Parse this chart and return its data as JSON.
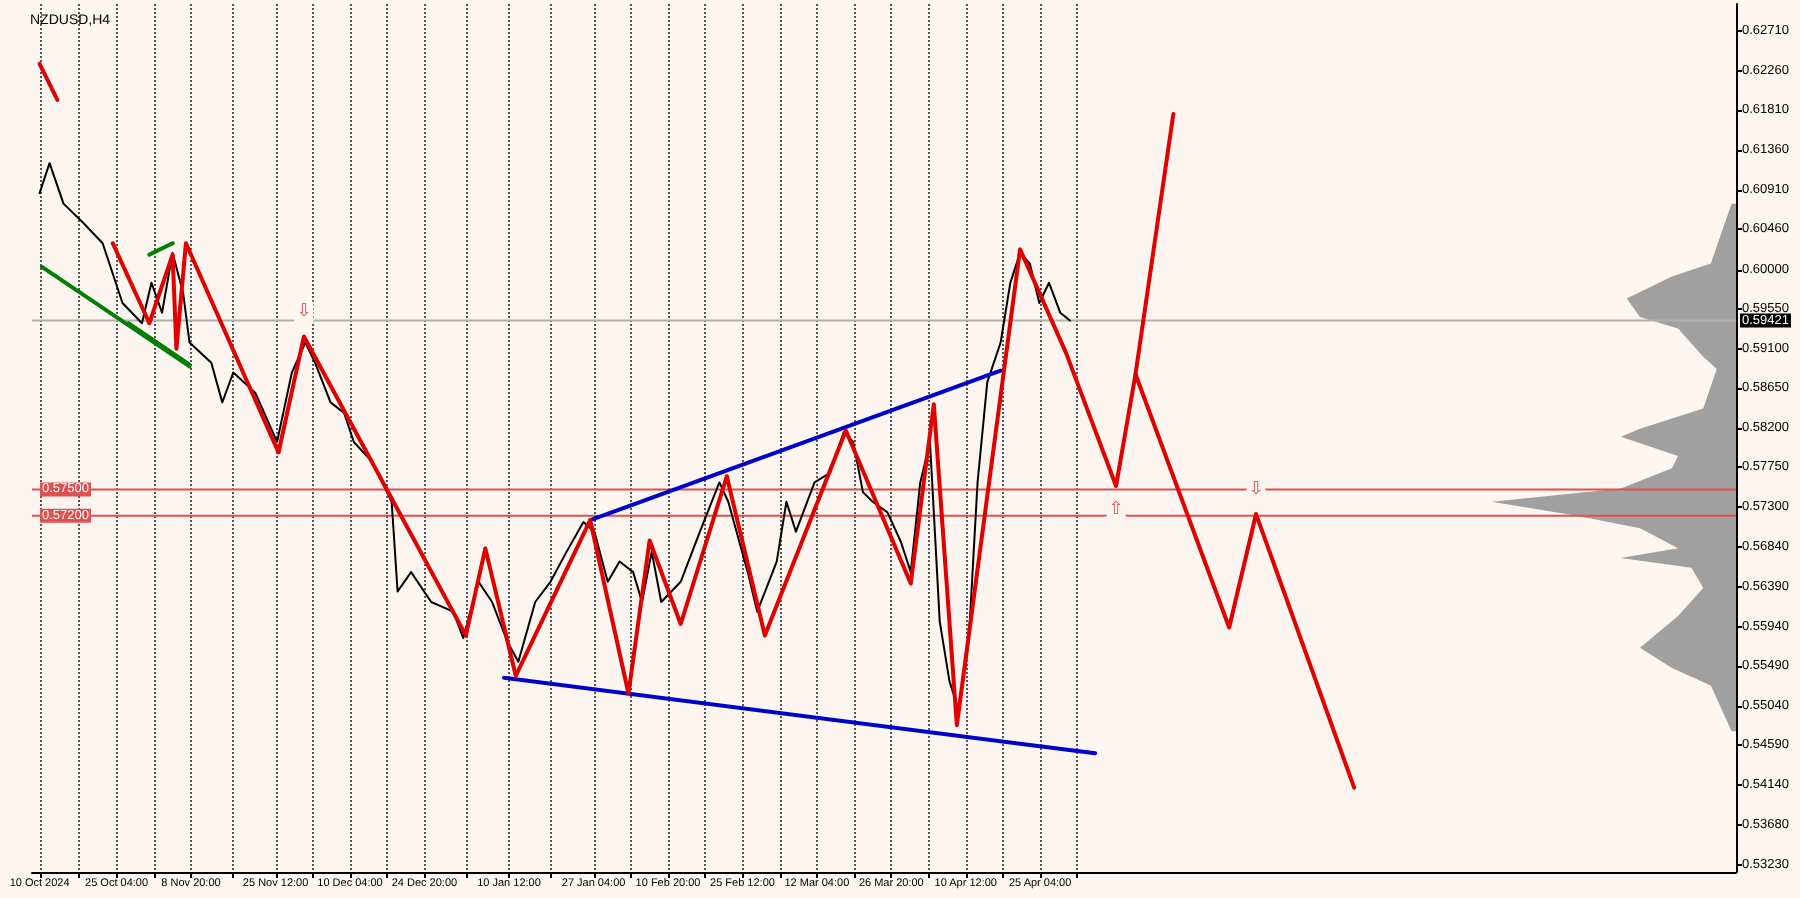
{
  "chart_data": {
    "type": "line",
    "title": "NZDUSD,H4",
    "xlim": [
      "2024-10-08T12:00",
      "2025-09-09T07:00"
    ],
    "xticks": [
      {
        "value": "2024-10-10T00:00",
        "label": "10 Oct 2024"
      },
      {
        "value": "2024-10-17T14:00",
        "label": null
      },
      {
        "value": "2024-10-25T04:00",
        "label": "25 Oct 04:00"
      },
      {
        "value": "2024-11-01T12:00",
        "label": null
      },
      {
        "value": "2024-11-08T20:00",
        "label": "8 Nov 20:00"
      },
      {
        "value": "2024-11-17T04:00",
        "label": null
      },
      {
        "value": "2024-11-25T12:00",
        "label": "25 Nov 12:00"
      },
      {
        "value": "2024-12-02T20:00",
        "label": null
      },
      {
        "value": "2024-12-10T04:00",
        "label": "10 Dec 04:00"
      },
      {
        "value": "2024-12-17T12:00",
        "label": null
      },
      {
        "value": "2024-12-24T20:00",
        "label": "24 Dec 20:00"
      },
      {
        "value": "2025-01-02T04:00",
        "label": null
      },
      {
        "value": "2025-01-10T12:00",
        "label": "10 Jan 12:00"
      },
      {
        "value": "2025-01-18T20:00",
        "label": null
      },
      {
        "value": "2025-01-27T04:00",
        "label": "27 Jan 04:00"
      },
      {
        "value": "2025-02-03T12:00",
        "label": null
      },
      {
        "value": "2025-02-10T20:00",
        "label": "10 Feb 20:00"
      },
      {
        "value": "2025-02-18T04:00",
        "label": null
      },
      {
        "value": "2025-02-25T12:00",
        "label": "25 Feb 12:00"
      },
      {
        "value": "2025-03-04T20:00",
        "label": null
      },
      {
        "value": "2025-03-12T04:00",
        "label": "12 Mar 04:00"
      },
      {
        "value": "2025-03-19T12:00",
        "label": null
      },
      {
        "value": "2025-03-26T20:00",
        "label": "26 Mar 20:00"
      },
      {
        "value": "2025-04-03T04:00",
        "label": null
      },
      {
        "value": "2025-04-10T12:00",
        "label": "10 Apr 12:00"
      },
      {
        "value": "2025-04-17T20:00",
        "label": null
      },
      {
        "value": "2025-04-25T04:00",
        "label": "25 Apr 04:00"
      },
      {
        "value": "2025-05-02T12:00",
        "label": null
      }
    ],
    "ylim": [
      0.5315,
      0.6302
    ],
    "yticks": [
      {
        "value": 0.6271,
        "label": "0.62710"
      },
      {
        "value": 0.6226,
        "label": "0.62260"
      },
      {
        "value": 0.6181,
        "label": "0.61810"
      },
      {
        "value": 0.6136,
        "label": "0.61360"
      },
      {
        "value": 0.6091,
        "label": "0.60910"
      },
      {
        "value": 0.6046,
        "label": "0.60460"
      },
      {
        "value": 0.6,
        "label": "0.60000"
      },
      {
        "value": 0.5955,
        "label": "0.59550"
      },
      {
        "value": 0.591,
        "label": "0.59100"
      },
      {
        "value": 0.5865,
        "label": "0.58650"
      },
      {
        "value": 0.582,
        "label": "0.58200"
      },
      {
        "value": 0.5775,
        "label": "0.57750"
      },
      {
        "value": 0.573,
        "label": "0.57300"
      },
      {
        "value": 0.5684,
        "label": "0.56840"
      },
      {
        "value": 0.5639,
        "label": "0.56390"
      },
      {
        "value": 0.5594,
        "label": "0.55940"
      },
      {
        "value": 0.5549,
        "label": "0.55490"
      },
      {
        "value": 0.5504,
        "label": "0.55040"
      },
      {
        "value": 0.5459,
        "label": "0.54590"
      },
      {
        "value": 0.5414,
        "label": "0.54140"
      },
      {
        "value": 0.5368,
        "label": "0.53680"
      },
      {
        "value": 0.5323,
        "label": "0.53230"
      }
    ],
    "grid": "x",
    "series": [
      {
        "type": "area",
        "color": "#a0a0a0",
        "x": [
          "2025-09-08T10:00",
          "2025-09-04T08:00",
          "2025-08-27T16:00",
          "2025-08-18T18:00",
          "2025-08-21T09:00",
          "2025-08-28T21:00",
          "2025-09-02T20:00",
          "2025-09-05T12:00",
          "2025-09-02T20:00",
          "2025-08-21T09:00",
          "2025-08-17T14:00",
          "2025-08-28T21:00",
          "2025-08-27T16:00",
          "2025-08-17T14:00",
          "2025-07-23T05:00",
          "2025-08-08T22:00",
          "2025-08-21T09:00",
          "2025-08-28T21:00",
          "2025-08-17T14:00",
          "2025-08-31T12:00",
          "2025-09-02T20:00",
          "2025-08-28T21:00",
          "2025-08-21T09:00",
          "2025-08-27T16:00",
          "2025-09-04T08:00",
          "2025-09-08T10:00"
        ],
        "values": [
          0.6075,
          0.6007,
          0.5992,
          0.5967,
          0.5946,
          0.5933,
          0.5901,
          0.5887,
          0.5842,
          0.5819,
          0.581,
          0.5788,
          0.5774,
          0.5751,
          0.5736,
          0.572,
          0.5706,
          0.5683,
          0.5672,
          0.5661,
          0.5638,
          0.5606,
          0.557,
          0.5547,
          0.5527,
          0.5475
        ]
      },
      {
        "color": "#000000",
        "x": [
          "2024-10-10T00:00",
          "2024-10-11T23:00",
          "2024-10-14T17:00",
          "2024-10-18T15:00",
          "2024-10-22T10:00",
          "2024-10-26T08:00",
          "2024-10-30T04:00",
          "2024-11-01T01:00",
          "2024-11-03T03:00",
          "2024-11-05T05:00",
          "2024-11-07T07:00",
          "2024-11-08T13:00",
          "2024-11-12T20:00",
          "2024-11-15T00:00",
          "2024-11-17T04:00",
          "2024-11-21T12:00",
          "2024-11-25T19:00",
          "2024-11-28T17:00",
          "2024-12-01T09:00",
          "2024-12-03T07:00",
          "2024-12-06T08:00",
          "2024-12-09T00:00",
          "2024-12-10T22:00",
          "2024-12-14T14:00",
          "2024-12-18T09:00",
          "2024-12-19T13:00",
          "2024-12-22T05:00",
          "2024-12-26T04:00",
          "2024-12-30T12:00",
          "2025-01-01T12:00",
          "2025-01-04T12:00",
          "2025-01-07T04:00",
          "2025-01-10T04:00",
          "2025-01-12T08:00",
          "2025-01-15T16:00",
          "2025-01-18T16:00",
          "2025-01-21T20:00",
          "2025-01-25T04:00",
          "2025-01-27T08:00",
          "2025-01-29T23:00",
          "2025-02-01T07:00",
          "2025-02-03T23:00",
          "2025-02-05T17:00",
          "2025-02-07T15:00",
          "2025-02-09T12:00",
          "2025-02-13T08:00",
          "2025-02-17T03:00",
          "2025-02-20T23:00",
          "2025-02-22T17:00",
          "2025-02-26T13:00",
          "2025-02-28T10:00",
          "2025-03-04T06:00",
          "2025-03-06T04:00",
          "2025-03-08T01:00",
          "2025-03-11T17:00",
          "2025-03-14T19:00",
          "2025-03-17T11:00",
          "2025-03-19T08:00",
          "2025-03-21T06:00",
          "2025-03-23T04:00",
          "2025-03-26T02:00",
          "2025-03-28T18:00",
          "2025-03-30T16:00",
          "2025-04-01T13:00",
          "2025-04-03T11:00",
          "2025-04-05T09:00",
          "2025-04-07T07:00",
          "2025-04-09T04:00",
          "2025-04-11T02:00",
          "2025-04-12T20:00",
          "2025-04-14T18:00",
          "2025-04-17T09:00",
          "2025-04-19T07:00",
          "2025-04-21T05:00",
          "2025-04-23T03:00",
          "2025-04-25T00:00",
          "2025-04-26T22:00",
          "2025-04-29T03:00",
          "2025-05-01T01:00"
        ],
        "values": [
          0.6087,
          0.6121,
          0.6075,
          0.6053,
          0.603,
          0.5962,
          0.5939,
          0.5985,
          0.5951,
          0.6019,
          0.5973,
          0.5917,
          0.5894,
          0.5849,
          0.5883,
          0.586,
          0.5804,
          0.5883,
          0.5917,
          0.5894,
          0.5849,
          0.5837,
          0.5804,
          0.5781,
          0.5736,
          0.5634,
          0.5656,
          0.5622,
          0.5611,
          0.5581,
          0.5645,
          0.5622,
          0.5577,
          0.5554,
          0.5622,
          0.5645,
          0.5679,
          0.5713,
          0.5702,
          0.5645,
          0.5668,
          0.5656,
          0.5622,
          0.5679,
          0.5622,
          0.5645,
          0.5702,
          0.5758,
          0.5736,
          0.5656,
          0.5611,
          0.5668,
          0.5736,
          0.5702,
          0.5758,
          0.5769,
          0.5815,
          0.5804,
          0.5747,
          0.5736,
          0.5724,
          0.569,
          0.5656,
          0.5758,
          0.5804,
          0.56,
          0.5532,
          0.5498,
          0.5577,
          0.5758,
          0.5872,
          0.5917,
          0.5985,
          0.6019,
          0.6007,
          0.5962,
          0.5985,
          0.5951,
          0.5942
        ]
      },
      {
        "color": "#008000",
        "x": [
          "2024-10-10T11:00",
          "2024-11-08T13:00",
          null,
          "2024-10-27T12:00",
          "2024-11-08T13:00",
          null,
          "2024-10-31T15:00",
          "2024-11-05T05:00"
        ],
        "values": [
          0.6003,
          0.589,
          null,
          0.5939,
          0.5892,
          null,
          0.6017,
          0.603
        ]
      },
      {
        "color": "#0000cc",
        "x": [
          "2025-01-26T12:00",
          "2025-04-17T09:00"
        ],
        "values": [
          0.5715,
          0.5885
        ]
      },
      {
        "color": "#0000cc",
        "x": [
          "2025-01-09T12:00",
          "2025-05-06T00:00"
        ],
        "values": [
          0.5536,
          0.545
        ]
      },
      {
        "color": "#e00000",
        "x": [
          "2024-10-10T00:00",
          "2024-10-13T12:00",
          null,
          "2024-10-24T10:00",
          "2024-10-31T15:00",
          "2024-11-05T05:00",
          "2024-11-05T23:00",
          "2024-11-07T20:00",
          "2024-11-26T02:00",
          "2024-12-01T02:00",
          "2025-01-02T00:00",
          "2025-01-05T20:00",
          "2025-01-11T20:00",
          "2025-01-26T12:00",
          "2025-02-03T01:00",
          "2025-02-07T05:00",
          "2025-02-13T08:00",
          "2025-02-22T10:00",
          "2025-03-01T22:00",
          "2025-03-17T21:00",
          "2025-03-30T16:00",
          "2025-04-04T05:00",
          "2025-04-08T18:00",
          "2025-04-21T05:00",
          "2025-04-30T07:00",
          "2025-05-10T03:00",
          "2025-05-13T23:00",
          "2025-06-01T10:00",
          "2025-06-06T17:00",
          "2025-06-26T01:00"
        ],
        "values": [
          0.6234,
          0.6193,
          null,
          0.603,
          0.5939,
          0.6017,
          0.591,
          0.603,
          0.5792,
          0.5924,
          0.5584,
          0.5683,
          0.5538,
          0.5715,
          0.5518,
          0.5692,
          0.5597,
          0.5765,
          0.5584,
          0.5817,
          0.5643,
          0.5847,
          0.5482,
          0.6023,
          0.5905,
          0.5754,
          0.5881,
          0.5593,
          0.5722,
          0.5411
        ]
      },
      {
        "color": "#e00000",
        "x": [
          "2025-05-13T23:00",
          "2025-05-21T10:00"
        ],
        "values": [
          0.5881,
          0.6177
        ]
      }
    ],
    "ref_lines": [
      {
        "axis": "y",
        "value": 0.59421,
        "label": "0.59421",
        "color": "#b0b0b0"
      },
      {
        "axis": "y",
        "value": 0.575,
        "label": "0.57500",
        "color": "#e05050"
      },
      {
        "axis": "y",
        "value": 0.572,
        "label": "0.57200",
        "color": "#e05050"
      }
    ],
    "annotations": [
      {
        "text": "⇩",
        "x": "2024-12-01T02:00",
        "y": 0.5924
      },
      {
        "text": "⇧",
        "x": "2025-05-10T03:00",
        "y": 0.5754
      },
      {
        "text": "⇩",
        "x": "2025-06-06T17:00",
        "y": 0.5722
      }
    ]
  }
}
